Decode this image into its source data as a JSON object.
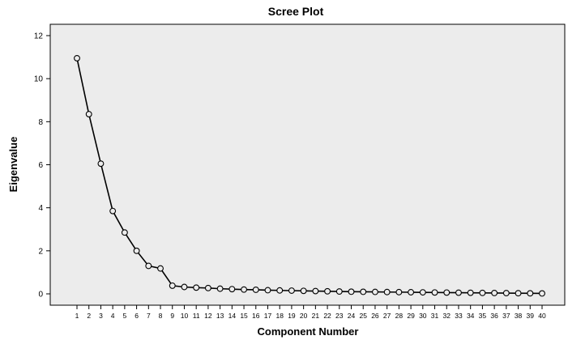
{
  "chart_data": {
    "type": "line",
    "title": "Scree Plot",
    "xlabel": "Component Number",
    "ylabel": "Eigenvalue",
    "ylim": [
      0,
      12
    ],
    "yticks": [
      "0",
      "2",
      "4",
      "6",
      "8",
      "10",
      "12"
    ],
    "grid": false,
    "x": [
      1,
      2,
      3,
      4,
      5,
      6,
      7,
      8,
      9,
      10,
      11,
      12,
      13,
      14,
      15,
      16,
      17,
      18,
      19,
      20,
      21,
      22,
      23,
      24,
      25,
      26,
      27,
      28,
      29,
      30,
      31,
      32,
      33,
      34,
      35,
      36,
      37,
      38,
      39,
      40
    ],
    "xtick_labels": [
      "1",
      "2",
      "3",
      "4",
      "5",
      "6",
      "7",
      "8",
      "9",
      "10",
      "11",
      "12",
      "13",
      "14",
      "15",
      "16",
      "17",
      "18",
      "19",
      "20",
      "21",
      "22",
      "23",
      "24",
      "25",
      "26",
      "27",
      "28",
      "29",
      "30",
      "31",
      "32",
      "33",
      "34",
      "35",
      "36",
      "37",
      "38",
      "39",
      "40"
    ],
    "series": [
      {
        "values": [
          10.95,
          8.35,
          6.05,
          3.85,
          2.85,
          2.0,
          1.3,
          1.18,
          0.38,
          0.32,
          0.29,
          0.27,
          0.24,
          0.22,
          0.2,
          0.19,
          0.17,
          0.16,
          0.15,
          0.14,
          0.13,
          0.12,
          0.11,
          0.1,
          0.095,
          0.09,
          0.085,
          0.08,
          0.075,
          0.07,
          0.065,
          0.06,
          0.055,
          0.05,
          0.045,
          0.04,
          0.035,
          0.03,
          0.025,
          0.02
        ]
      }
    ],
    "colors": {
      "plot_background": "#ececec",
      "line": "#000000",
      "marker_fill": "#ececec"
    }
  }
}
